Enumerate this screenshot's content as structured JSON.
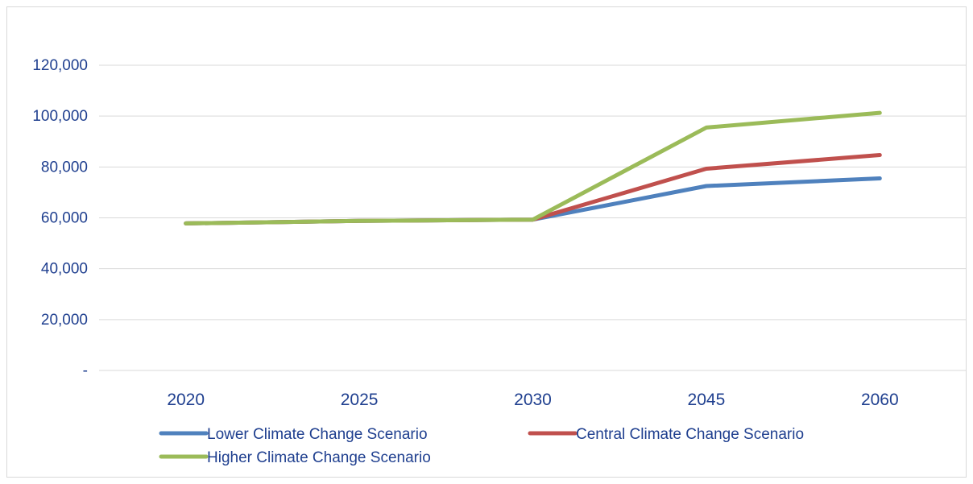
{
  "chart_data": {
    "type": "line",
    "title": "",
    "xlabel": "",
    "ylabel": "",
    "categories": [
      "2020",
      "2025",
      "2030",
      "2045",
      "2060"
    ],
    "ylim": [
      0,
      120000
    ],
    "y_ticks": [
      0,
      20000,
      40000,
      60000,
      80000,
      100000,
      120000
    ],
    "y_tick_labels": [
      "-",
      "20,000",
      "40,000",
      "60,000",
      "80,000",
      "100,000",
      "120,000"
    ],
    "grid": true,
    "legend_position": "bottom",
    "series": [
      {
        "name": "Lower Climate Change Scenario",
        "color": "#4f81bd",
        "values": [
          57800,
          58800,
          59300,
          72500,
          75500
        ]
      },
      {
        "name": "Central Climate Change Scenario",
        "color": "#c0504d",
        "values": [
          57800,
          58800,
          59300,
          79300,
          84700
        ]
      },
      {
        "name": "Higher Climate Change Scenario",
        "color": "#9bbb59",
        "values": [
          57800,
          58800,
          59300,
          95500,
          101300
        ]
      }
    ]
  }
}
